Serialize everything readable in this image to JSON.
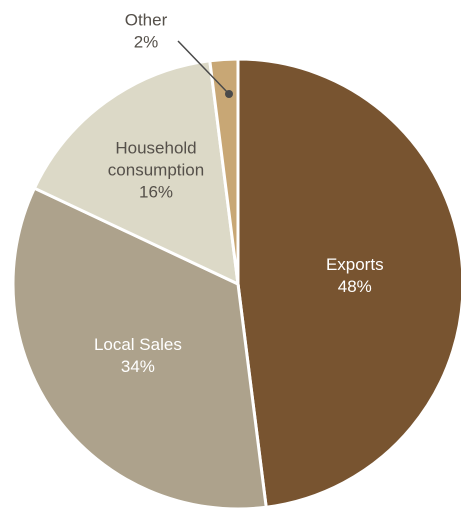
{
  "chart_data": {
    "type": "pie",
    "slices": [
      {
        "label": "Exports",
        "value": 48,
        "value_label": "48%",
        "color": "#785430",
        "text_color": "#ffffff"
      },
      {
        "label": "Local Sales",
        "value": 34,
        "value_label": "34%",
        "color": "#ada28c",
        "text_color": "#ffffff"
      },
      {
        "label": "Household consumption",
        "value": 16,
        "value_label": "16%",
        "color": "#dcd9c7",
        "text_color": "#55504a"
      },
      {
        "label": "Other",
        "value": 2,
        "value_label": "2%",
        "color": "#c8a775",
        "text_color": "#55504a"
      }
    ],
    "start_angle_deg": 0,
    "direction": "clockwise",
    "legend": "none",
    "leader_line_color": "#4a4a4a"
  }
}
